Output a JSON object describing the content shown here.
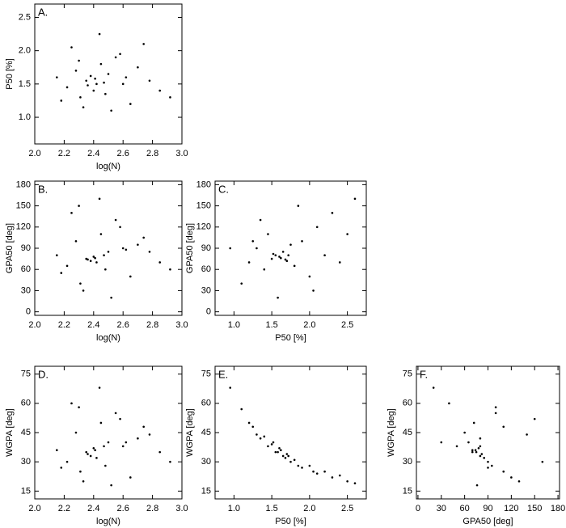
{
  "chart_data": [
    {
      "type": "scatter",
      "panel": "A.",
      "xlabel": "log(N)",
      "ylabel": "P50 [%]",
      "color": "#000000",
      "xlim": [
        2.0,
        3.0
      ],
      "ylim": [
        0.6,
        2.7
      ],
      "xticks": [
        {
          "value": 2.0,
          "label": "2.0"
        },
        2.2,
        2.4,
        2.6,
        2.8,
        {
          "value": 3.0,
          "label": "3.0"
        }
      ],
      "yticks": [
        {
          "value": 1.0,
          "label": "1.0"
        },
        1.5,
        {
          "value": 2.0,
          "label": "2.0"
        },
        2.5
      ],
      "x": [
        2.15,
        2.22,
        2.28,
        2.31,
        2.35,
        2.38,
        2.4,
        2.42,
        2.45,
        2.48,
        2.5,
        2.55,
        2.6,
        2.65,
        2.7,
        2.78,
        2.85,
        2.92,
        2.25,
        2.33,
        2.44,
        2.52,
        2.58,
        2.36,
        2.41,
        2.47,
        2.3,
        2.62,
        2.18,
        2.74
      ],
      "values": [
        1.6,
        1.45,
        1.7,
        1.3,
        1.55,
        1.62,
        1.4,
        1.5,
        1.8,
        1.35,
        1.65,
        1.9,
        1.5,
        1.2,
        1.75,
        1.55,
        1.4,
        1.3,
        2.05,
        1.15,
        2.25,
        1.1,
        1.95,
        1.48,
        1.58,
        1.52,
        1.85,
        1.6,
        1.25,
        2.1
      ]
    },
    {
      "type": "scatter",
      "panel": "B.",
      "xlabel": "log(N)",
      "ylabel": "GPA50 [deg]",
      "color": "#000000",
      "xlim": [
        2.0,
        3.0
      ],
      "ylim": [
        -5,
        185
      ],
      "xticks": [
        {
          "value": 2.0,
          "label": "2.0"
        },
        2.2,
        2.4,
        2.6,
        2.8,
        {
          "value": 3.0,
          "label": "3.0"
        }
      ],
      "yticks": [
        0,
        30,
        60,
        90,
        120,
        150,
        180
      ],
      "x": [
        2.15,
        2.22,
        2.28,
        2.31,
        2.35,
        2.38,
        2.4,
        2.42,
        2.45,
        2.48,
        2.5,
        2.55,
        2.6,
        2.65,
        2.7,
        2.78,
        2.85,
        2.92,
        2.25,
        2.33,
        2.44,
        2.52,
        2.58,
        2.36,
        2.41,
        2.47,
        2.3,
        2.62,
        2.18,
        2.74
      ],
      "values": [
        80,
        65,
        100,
        40,
        75,
        72,
        78,
        70,
        110,
        60,
        85,
        130,
        90,
        50,
        95,
        85,
        70,
        60,
        140,
        30,
        160,
        20,
        120,
        74,
        76,
        80,
        150,
        88,
        55,
        105
      ]
    },
    {
      "type": "scatter",
      "panel": "C.",
      "xlabel": "P50 [%]",
      "ylabel": "GPA50 [deg]",
      "color": "#000000",
      "xlim": [
        0.75,
        2.75
      ],
      "ylim": [
        -5,
        185
      ],
      "xticks": [
        {
          "value": 1.0,
          "label": "1.0"
        },
        1.5,
        {
          "value": 2.0,
          "label": "2.0"
        },
        2.5
      ],
      "yticks": [
        0,
        30,
        60,
        90,
        120,
        150,
        180
      ],
      "x": [
        1.2,
        1.3,
        1.4,
        1.45,
        1.5,
        1.55,
        1.6,
        1.65,
        1.7,
        1.75,
        1.8,
        1.9,
        2.0,
        2.1,
        2.2,
        2.3,
        2.4,
        2.6,
        1.1,
        1.35,
        1.58,
        1.62,
        1.85,
        1.52,
        1.68,
        1.72,
        1.25,
        2.05,
        0.95,
        2.5
      ],
      "values": [
        70,
        90,
        60,
        110,
        75,
        80,
        78,
        85,
        72,
        95,
        65,
        100,
        50,
        120,
        80,
        140,
        70,
        160,
        40,
        130,
        20,
        76,
        150,
        82,
        74,
        80,
        100,
        30,
        90,
        110
      ]
    },
    {
      "type": "scatter",
      "panel": "D.",
      "xlabel": "log(N)",
      "ylabel": "WGPA [deg]",
      "color": "#000000",
      "xlim": [
        2.0,
        3.0
      ],
      "ylim": [
        11,
        79
      ],
      "xticks": [
        {
          "value": 2.0,
          "label": "2.0"
        },
        2.2,
        2.4,
        2.6,
        2.8,
        {
          "value": 3.0,
          "label": "3.0"
        }
      ],
      "yticks": [
        15,
        30,
        45,
        60,
        75
      ],
      "x": [
        2.15,
        2.22,
        2.28,
        2.31,
        2.35,
        2.38,
        2.4,
        2.42,
        2.45,
        2.48,
        2.5,
        2.55,
        2.6,
        2.65,
        2.7,
        2.78,
        2.85,
        2.92,
        2.25,
        2.33,
        2.44,
        2.52,
        2.58,
        2.36,
        2.41,
        2.47,
        2.3,
        2.62,
        2.18,
        2.74
      ],
      "values": [
        36,
        30,
        45,
        25,
        35,
        33,
        37,
        32,
        50,
        28,
        40,
        55,
        38,
        22,
        42,
        44,
        35,
        30,
        60,
        20,
        68,
        18,
        52,
        34,
        36,
        38,
        58,
        40,
        27,
        48
      ]
    },
    {
      "type": "scatter",
      "panel": "E.",
      "xlabel": "P50 [%]",
      "ylabel": "WGPA [deg]",
      "color": "#000000",
      "xlim": [
        0.75,
        2.75
      ],
      "ylim": [
        11,
        79
      ],
      "xticks": [
        {
          "value": 1.0,
          "label": "1.0"
        },
        1.5,
        {
          "value": 2.0,
          "label": "2.0"
        },
        2.5
      ],
      "yticks": [
        15,
        30,
        45,
        60,
        75
      ],
      "x": [
        1.2,
        1.3,
        1.4,
        1.45,
        1.5,
        1.55,
        1.6,
        1.65,
        1.7,
        1.75,
        1.8,
        1.9,
        2.0,
        2.1,
        2.2,
        2.3,
        2.4,
        2.6,
        1.1,
        1.35,
        1.58,
        1.62,
        1.85,
        1.52,
        1.68,
        1.72,
        1.25,
        2.05,
        0.95,
        2.5
      ],
      "values": [
        50,
        44,
        43,
        38,
        39,
        35,
        37,
        33,
        34,
        30,
        31,
        27,
        28,
        24,
        25,
        22,
        23,
        19,
        57,
        42,
        35,
        36,
        28,
        40,
        32,
        33,
        48,
        25,
        68,
        20
      ]
    },
    {
      "type": "scatter",
      "panel": "F.",
      "xlabel": "GPA50 [deg]",
      "ylabel": "WGPA [deg]",
      "color": "#000000",
      "xlim": [
        -2,
        182
      ],
      "ylim": [
        11,
        79
      ],
      "xticks": [
        0,
        30,
        60,
        90,
        120,
        150,
        180
      ],
      "yticks": [
        15,
        30,
        45,
        60,
        75
      ],
      "x": [
        70,
        90,
        60,
        110,
        75,
        80,
        78,
        85,
        72,
        95,
        65,
        100,
        50,
        120,
        80,
        140,
        70,
        160,
        40,
        130,
        20,
        76,
        150,
        82,
        74,
        80,
        100,
        30,
        90,
        110
      ],
      "values": [
        36,
        30,
        45,
        25,
        35,
        33,
        37,
        32,
        50,
        28,
        40,
        55,
        38,
        22,
        42,
        44,
        35,
        30,
        60,
        20,
        68,
        18,
        52,
        34,
        36,
        38,
        58,
        40,
        27,
        48
      ]
    }
  ]
}
